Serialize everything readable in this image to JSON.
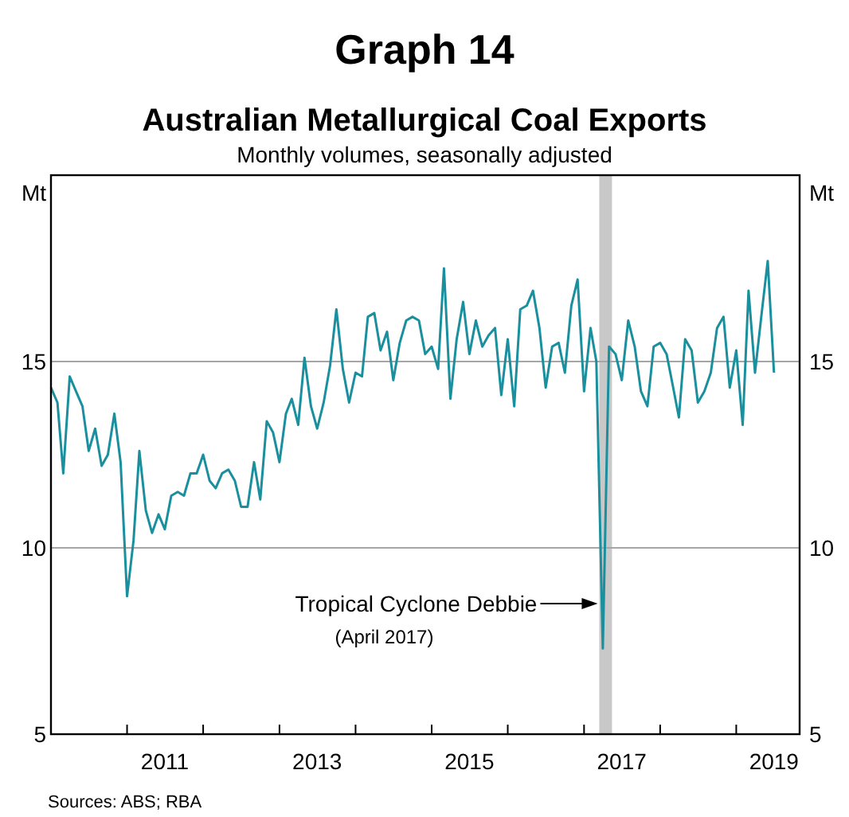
{
  "chart_data": {
    "type": "line",
    "title": "Australian Metallurgical Coal Exports",
    "subtitle": "Monthly volumes, seasonally adjusted",
    "ylabel": "Mt",
    "y2label": "Mt",
    "annotations": [
      "Graph 14",
      "Tropical Cyclone Debbie",
      "(April 2017)",
      "Sources: ABS; RBA"
    ],
    "x": [
      "2010-01",
      "2010-02",
      "2010-03",
      "2010-04",
      "2010-05",
      "2010-06",
      "2010-07",
      "2010-08",
      "2010-09",
      "2010-10",
      "2010-11",
      "2010-12",
      "2011-01",
      "2011-02",
      "2011-03",
      "2011-04",
      "2011-05",
      "2011-06",
      "2011-07",
      "2011-08",
      "2011-09",
      "2011-10",
      "2011-11",
      "2011-12",
      "2012-01",
      "2012-02",
      "2012-03",
      "2012-04",
      "2012-05",
      "2012-06",
      "2012-07",
      "2012-08",
      "2012-09",
      "2012-10",
      "2012-11",
      "2012-12",
      "2013-01",
      "2013-02",
      "2013-03",
      "2013-04",
      "2013-05",
      "2013-06",
      "2013-07",
      "2013-08",
      "2013-09",
      "2013-10",
      "2013-11",
      "2013-12",
      "2014-01",
      "2014-02",
      "2014-03",
      "2014-04",
      "2014-05",
      "2014-06",
      "2014-07",
      "2014-08",
      "2014-09",
      "2014-10",
      "2014-11",
      "2014-12",
      "2015-01",
      "2015-02",
      "2015-03",
      "2015-04",
      "2015-05",
      "2015-06",
      "2015-07",
      "2015-08",
      "2015-09",
      "2015-10",
      "2015-11",
      "2015-12",
      "2016-01",
      "2016-02",
      "2016-03",
      "2016-04",
      "2016-05",
      "2016-06",
      "2016-07",
      "2016-08",
      "2016-09",
      "2016-10",
      "2016-11",
      "2016-12",
      "2017-01",
      "2017-02",
      "2017-03",
      "2017-04",
      "2017-05",
      "2017-06",
      "2017-07",
      "2017-08",
      "2017-09",
      "2017-10",
      "2017-11",
      "2017-12",
      "2018-01",
      "2018-02",
      "2018-03",
      "2018-04",
      "2018-05",
      "2018-06",
      "2018-07",
      "2018-08",
      "2018-09",
      "2018-10",
      "2018-11",
      "2018-12",
      "2019-01",
      "2019-02",
      "2019-03",
      "2019-04",
      "2019-05",
      "2019-06",
      "2019-07"
    ],
    "series": [
      {
        "color": "#1a8f9e",
        "values": [
          14.3,
          13.9,
          12.0,
          14.6,
          14.2,
          13.8,
          12.6,
          13.2,
          12.2,
          12.5,
          13.6,
          12.3,
          8.7,
          10.2,
          12.6,
          11.0,
          10.4,
          10.9,
          10.5,
          11.4,
          11.5,
          11.4,
          12.0,
          12.0,
          12.5,
          11.8,
          11.6,
          12.0,
          12.1,
          11.8,
          11.1,
          11.1,
          12.3,
          11.3,
          13.4,
          13.1,
          12.3,
          13.6,
          14.0,
          13.3,
          15.1,
          13.8,
          13.2,
          13.9,
          14.9,
          16.4,
          14.8,
          13.9,
          14.7,
          14.6,
          16.2,
          16.3,
          15.3,
          15.8,
          14.5,
          15.5,
          16.1,
          16.2,
          16.1,
          15.2,
          15.4,
          14.8,
          17.5,
          14.0,
          15.6,
          16.6,
          15.2,
          16.1,
          15.4,
          15.7,
          15.9,
          14.1,
          15.6,
          13.8,
          16.4,
          16.5,
          16.9,
          15.9,
          14.3,
          15.4,
          15.5,
          14.7,
          16.5,
          17.2,
          14.2,
          15.9,
          15.0,
          7.3,
          15.4,
          15.2,
          14.5,
          16.1,
          15.4,
          14.2,
          13.8,
          15.4,
          15.5,
          15.2,
          14.4,
          13.5,
          15.6,
          15.3,
          13.9,
          14.2,
          14.7,
          15.9,
          16.2,
          14.3,
          15.3,
          13.3,
          16.9,
          14.7,
          16.2,
          17.7,
          14.7
        ]
      }
    ],
    "xlim": [
      "2010-01",
      "2019-11"
    ],
    "xticks": [
      {
        "value": "2011-01",
        "label": null
      },
      {
        "value": "2012-01",
        "label": null
      },
      {
        "value": "2013-01",
        "label": null
      },
      {
        "value": "2014-01",
        "label": null
      },
      {
        "value": "2015-01",
        "label": null
      },
      {
        "value": "2016-01",
        "label": null
      },
      {
        "value": "2017-01",
        "label": null
      },
      {
        "value": "2018-01",
        "label": null
      },
      {
        "value": "2019-01",
        "label": null
      },
      {
        "value": "2011-07",
        "label": "2011"
      },
      {
        "value": "2013-07",
        "label": "2013"
      },
      {
        "value": "2015-07",
        "label": "2015"
      },
      {
        "value": "2017-07",
        "label": "2017"
      },
      {
        "value": "2019-07",
        "label": "2019"
      }
    ],
    "ylim": [
      5,
      20
    ],
    "yticks": [
      5,
      10,
      15
    ],
    "y2lim": [
      5,
      20
    ],
    "y2ticks": [
      5,
      10,
      15
    ],
    "grid": "y",
    "marker": "none",
    "line_style": "solid",
    "bands": [
      {
        "axis": "x",
        "from": "2017-03-15",
        "to": "2017-05-15",
        "label": null,
        "color": "#c8c8c8"
      }
    ]
  }
}
